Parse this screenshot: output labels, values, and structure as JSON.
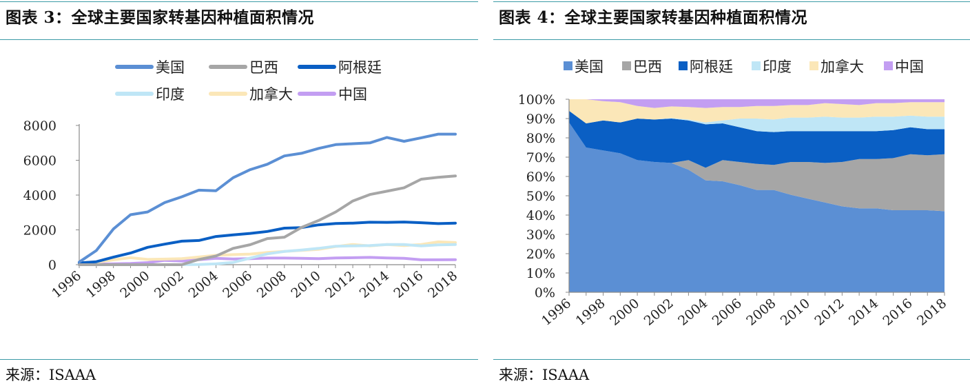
{
  "chart_data": [
    {
      "type": "line",
      "title": "图表 3：全球主要国家转基因种植面积情况",
      "source": "来源：ISAAA",
      "x": [
        1996,
        1997,
        1998,
        1999,
        2000,
        2001,
        2002,
        2003,
        2004,
        2005,
        2006,
        2007,
        2008,
        2009,
        2010,
        2011,
        2012,
        2013,
        2014,
        2015,
        2016,
        2017,
        2018
      ],
      "xticks": [
        "1996",
        "1998",
        "2000",
        "2002",
        "2004",
        "2006",
        "2008",
        "2010",
        "2012",
        "2014",
        "2016",
        "2018"
      ],
      "yticks": [
        "0",
        "2000",
        "4000",
        "6000",
        "8000"
      ],
      "ylim": [
        0,
        8000
      ],
      "legend_position": "top",
      "series": [
        {
          "name": "美国",
          "color": "#5b8fd4",
          "values": [
            150,
            810,
            2050,
            2870,
            3030,
            3570,
            3900,
            4280,
            4250,
            5000,
            5460,
            5770,
            6250,
            6400,
            6680,
            6900,
            6950,
            7000,
            7310,
            7090,
            7290,
            7500,
            7500
          ]
        },
        {
          "name": "巴西",
          "color": "#a6a6a6",
          "values": [
            0,
            0,
            0,
            0,
            0,
            0,
            0,
            300,
            500,
            940,
            1150,
            1500,
            1580,
            2140,
            2540,
            3030,
            3660,
            4030,
            4220,
            4420,
            4910,
            5020,
            5100
          ]
        },
        {
          "name": "阿根廷",
          "color": "#0a5fc4",
          "values": [
            100,
            170,
            430,
            670,
            1000,
            1180,
            1350,
            1390,
            1620,
            1710,
            1800,
            1910,
            2100,
            2130,
            2290,
            2370,
            2390,
            2440,
            2430,
            2450,
            2410,
            2360,
            2390
          ]
        },
        {
          "name": "印度",
          "color": "#bfe6f6",
          "values": [
            0,
            0,
            0,
            0,
            0,
            0,
            5,
            10,
            50,
            130,
            380,
            620,
            760,
            840,
            940,
            1060,
            1080,
            1100,
            1160,
            1160,
            1080,
            1140,
            1160
          ]
        },
        {
          "name": "加拿大",
          "color": "#fbe7b8",
          "values": [
            100,
            130,
            280,
            400,
            300,
            320,
            350,
            440,
            540,
            580,
            610,
            700,
            760,
            820,
            880,
            1040,
            1160,
            1080,
            1160,
            1100,
            1160,
            1310,
            1270
          ]
        },
        {
          "name": "中国",
          "color": "#c39ef2",
          "values": [
            0,
            30,
            50,
            70,
            120,
            250,
            210,
            290,
            370,
            330,
            350,
            380,
            380,
            370,
            350,
            390,
            400,
            420,
            390,
            370,
            280,
            280,
            290
          ]
        }
      ]
    },
    {
      "type": "area",
      "stacked": "percent",
      "title": "图表 4：全球主要国家转基因种植面积情况",
      "source": "来源：ISAAA",
      "x": [
        1996,
        1997,
        1998,
        1999,
        2000,
        2001,
        2002,
        2003,
        2004,
        2005,
        2006,
        2007,
        2008,
        2009,
        2010,
        2011,
        2012,
        2013,
        2014,
        2015,
        2016,
        2017,
        2018
      ],
      "xticks": [
        "1996",
        "1998",
        "2000",
        "2002",
        "2004",
        "2006",
        "2008",
        "2010",
        "2012",
        "2014",
        "2016",
        "2018"
      ],
      "yticks": [
        "0%",
        "10%",
        "20%",
        "30%",
        "40%",
        "50%",
        "60%",
        "70%",
        "80%",
        "90%",
        "100%"
      ],
      "ylim": [
        0,
        100
      ],
      "legend_position": "top",
      "series": [
        {
          "name": "美国",
          "color": "#5b8fd4",
          "values": [
            88,
            75,
            73.5,
            72,
            68.5,
            67.5,
            67,
            63.5,
            58,
            57.5,
            55.5,
            53,
            53,
            50.5,
            48.5,
            46.5,
            44.5,
            43.5,
            43.5,
            42.5,
            42.5,
            42.5,
            42
          ]
        },
        {
          "name": "巴西",
          "color": "#a6a6a6",
          "values": [
            0,
            0,
            0,
            0,
            0,
            0,
            0,
            5,
            6.5,
            11,
            12,
            13.5,
            13,
            17,
            19,
            20.5,
            23,
            25.5,
            25.5,
            27,
            29,
            28.5,
            29.5
          ]
        },
        {
          "name": "阿根廷",
          "color": "#0a5fc4",
          "values": [
            6,
            12.5,
            15.5,
            16,
            21.5,
            22,
            23,
            20.5,
            22.5,
            19,
            18,
            17,
            17,
            16,
            16,
            16.5,
            16,
            14.5,
            14.5,
            14.5,
            14,
            13.5,
            13
          ]
        },
        {
          "name": "印度",
          "color": "#bfe6f6",
          "values": [
            0,
            0,
            0,
            0,
            0,
            0,
            0.3,
            0.5,
            1,
            1.5,
            4.5,
            6.5,
            6.5,
            7,
            7,
            7.5,
            7,
            7,
            7.5,
            7,
            6,
            6.5,
            6.5
          ]
        },
        {
          "name": "加拿大",
          "color": "#fbe7b8",
          "values": [
            6,
            12.5,
            10,
            10.5,
            6.5,
            6,
            6,
            6.5,
            7.5,
            7,
            6,
            6.5,
            7,
            6.5,
            6.5,
            7,
            7,
            6.5,
            7,
            7,
            7,
            7.5,
            7.5
          ]
        },
        {
          "name": "中国",
          "color": "#c39ef2",
          "values": [
            0,
            0,
            1,
            1.5,
            3.5,
            4.5,
            3.7,
            4,
            4.5,
            4,
            4,
            3.5,
            3.5,
            3,
            3,
            2,
            2.5,
            3,
            2,
            2,
            1.5,
            1.5,
            1.5
          ]
        }
      ]
    }
  ]
}
